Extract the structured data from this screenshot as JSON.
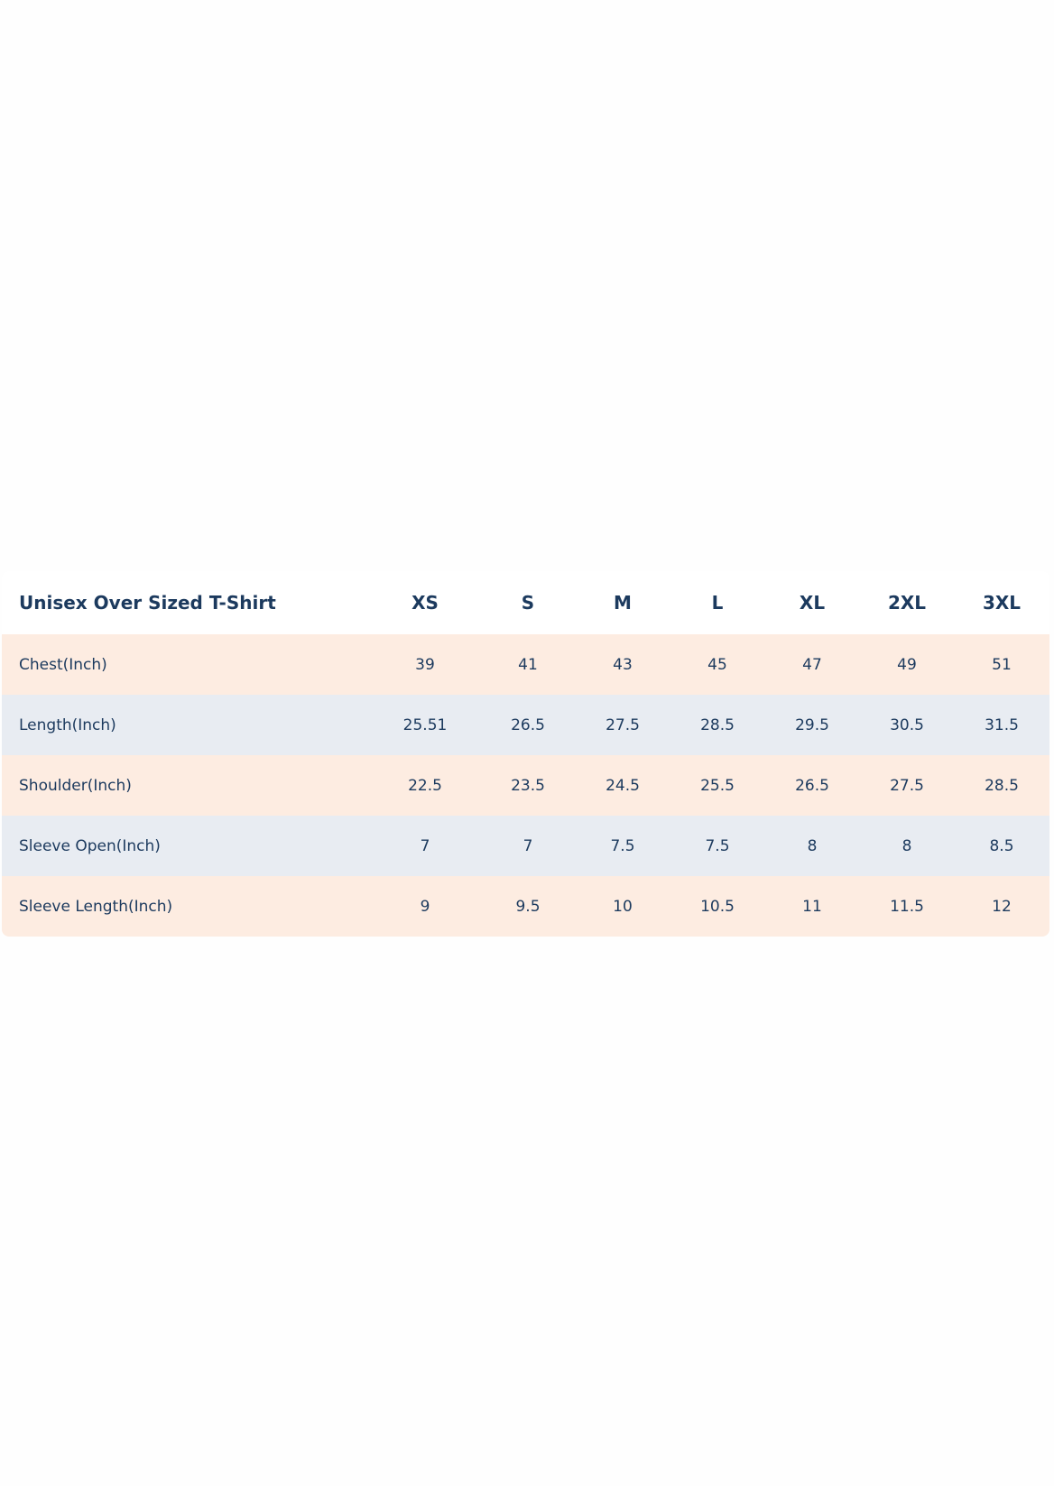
{
  "table": {
    "header": [
      "Unisex Over Sized T-Shirt",
      "XS",
      "S",
      "M",
      "L",
      "XL",
      "2XL",
      "3XL"
    ],
    "rows": [
      [
        "Chest(Inch)",
        39,
        41,
        43,
        45,
        47,
        49,
        51
      ],
      [
        "Length(Inch)",
        25.51,
        26.5,
        27.5,
        28.5,
        29.5,
        30.5,
        31.5
      ],
      [
        "Shoulder(Inch)",
        22.5,
        23.5,
        24.5,
        25.5,
        26.5,
        27.5,
        28.5
      ],
      [
        "Sleeve Open(Inch)",
        7,
        7,
        7.5,
        7.5,
        8,
        8,
        8.5
      ],
      [
        "Sleeve Length(Inch)",
        9,
        9.5,
        10,
        10.5,
        11,
        11.5,
        12
      ]
    ]
  }
}
